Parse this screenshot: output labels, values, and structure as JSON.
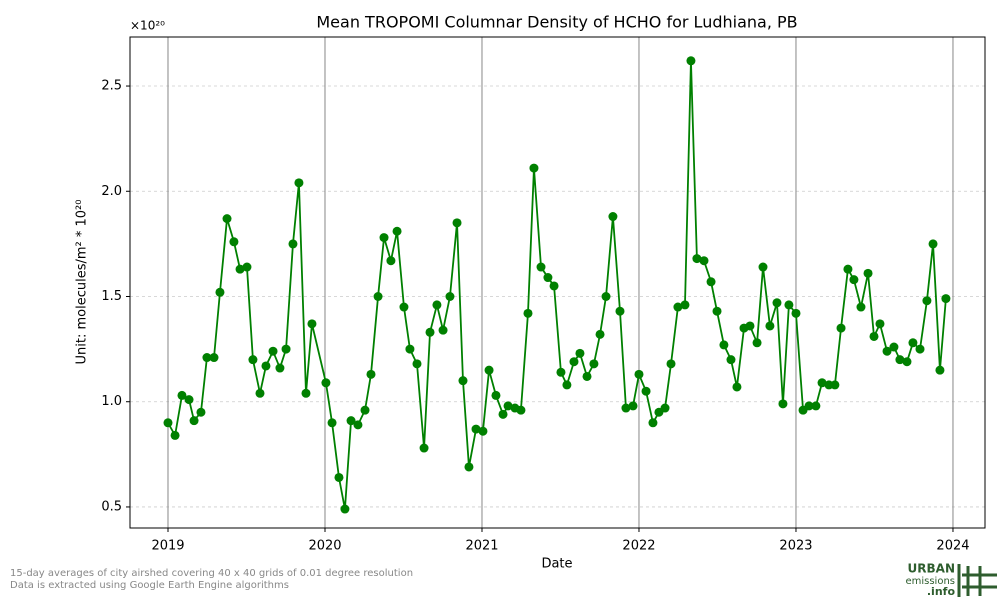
{
  "chart_data": {
    "type": "line",
    "title": "Mean TROPOMI Columnar Density of HCHO for Ludhiana, PB",
    "x_label": "Date",
    "y_label": "Unit: molecules/m² * 10²⁰",
    "y_offset_label": "×10²⁰",
    "notes": [
      "15-day averages of city airshed covering 40 x 40 grids of 0.01 degree resolution",
      "Data is extracted using Google Earth Engine algorithms"
    ],
    "logo": [
      "URBAN",
      "emissions",
      ".info"
    ],
    "xlim": [
      2018.758,
      2024.204
    ],
    "xticks": [
      2019,
      2020,
      2021,
      2022,
      2023,
      2024
    ],
    "ylim": [
      0.4,
      2.733
    ],
    "yticks": [
      {
        "value": 0.5,
        "label": "0.5"
      },
      {
        "value": 1,
        "label": "1.0"
      },
      {
        "value": 1.5,
        "label": "1.5"
      },
      {
        "value": 2,
        "label": "2.0"
      },
      {
        "value": 2.5,
        "label": "2.5"
      }
    ],
    "grid": true,
    "series": [
      {
        "color": "#008000",
        "x": [
          2019.0,
          2019.045,
          2019.089,
          2019.134,
          2019.166,
          2019.21,
          2019.248,
          2019.293,
          2019.331,
          2019.376,
          2019.42,
          2019.459,
          2019.503,
          2019.541,
          2019.586,
          2019.624,
          2019.669,
          2019.713,
          2019.752,
          2019.796,
          2019.834,
          2019.879,
          2019.917,
          2020.006,
          2020.045,
          2020.089,
          2020.127,
          2020.166,
          2020.21,
          2020.255,
          2020.293,
          2020.338,
          2020.376,
          2020.42,
          2020.459,
          2020.503,
          2020.541,
          2020.586,
          2020.631,
          2020.669,
          2020.713,
          2020.752,
          2020.796,
          2020.841,
          2020.879,
          2020.917,
          2020.962,
          2021.006,
          2021.045,
          2021.089,
          2021.134,
          2021.166,
          2021.21,
          2021.248,
          2021.293,
          2021.331,
          2021.376,
          2021.42,
          2021.459,
          2021.503,
          2021.541,
          2021.586,
          2021.624,
          2021.669,
          2021.713,
          2021.752,
          2021.79,
          2021.834,
          2021.879,
          2021.917,
          2021.962,
          2022.0,
          2022.045,
          2022.089,
          2022.127,
          2022.166,
          2022.204,
          2022.248,
          2022.293,
          2022.331,
          2022.369,
          2022.414,
          2022.459,
          2022.497,
          2022.541,
          2022.586,
          2022.624,
          2022.669,
          2022.707,
          2022.752,
          2022.79,
          2022.834,
          2022.879,
          2022.917,
          2022.955,
          2023.0,
          2023.045,
          2023.083,
          2023.127,
          2023.166,
          2023.21,
          2023.248,
          2023.287,
          2023.331,
          2023.369,
          2023.414,
          2023.459,
          2023.497,
          2023.535,
          2023.58,
          2023.624,
          2023.662,
          2023.707,
          2023.745,
          2023.79,
          2023.834,
          2023.873,
          2023.917,
          2023.955
        ],
        "values": [
          0.9,
          0.84,
          1.03,
          1.01,
          0.91,
          0.95,
          1.21,
          1.21,
          1.52,
          1.87,
          1.76,
          1.63,
          1.64,
          1.2,
          1.04,
          1.17,
          1.24,
          1.16,
          1.25,
          1.75,
          2.04,
          1.04,
          1.37,
          1.09,
          0.9,
          0.64,
          0.49,
          0.91,
          0.89,
          0.96,
          1.13,
          1.5,
          1.78,
          1.67,
          1.81,
          1.45,
          1.25,
          1.18,
          0.78,
          1.33,
          1.46,
          1.34,
          1.5,
          1.85,
          1.1,
          0.69,
          0.87,
          0.86,
          1.15,
          1.03,
          0.94,
          0.98,
          0.97,
          0.96,
          1.42,
          2.11,
          1.64,
          1.59,
          1.55,
          1.14,
          1.08,
          1.19,
          1.23,
          1.12,
          1.18,
          1.32,
          1.5,
          1.88,
          1.43,
          0.97,
          0.98,
          1.13,
          1.05,
          0.9,
          0.95,
          0.97,
          1.18,
          1.45,
          1.46,
          2.62,
          1.68,
          1.67,
          1.57,
          1.43,
          1.27,
          1.2,
          1.07,
          1.35,
          1.36,
          1.28,
          1.64,
          1.36,
          1.47,
          0.99,
          1.46,
          1.42,
          0.96,
          0.98,
          0.98,
          1.09,
          1.08,
          1.08,
          1.35,
          1.63,
          1.58,
          1.45,
          1.61,
          1.31,
          1.37,
          1.24,
          1.26,
          1.2,
          1.19,
          1.28,
          1.25,
          1.48,
          1.75,
          1.15,
          1.49
        ]
      }
    ]
  }
}
